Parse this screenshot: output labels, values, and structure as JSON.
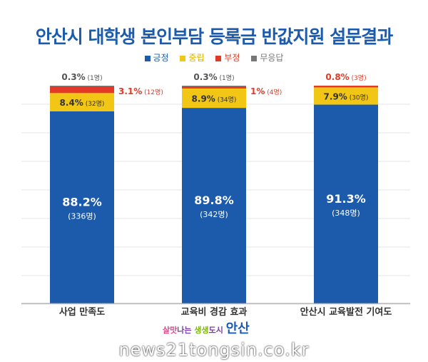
{
  "chart_data": {
    "type": "bar",
    "stacked": true,
    "title": "안산시 대학생 본인부담 등록금 반값지원 설문결과",
    "legend_position": "top",
    "categories": [
      "사업 만족도",
      "교육비 경감 효과",
      "안산시 교육발전 기여도"
    ],
    "series": [
      {
        "name": "긍정",
        "color": "#1c5bab",
        "values": [
          88.2,
          89.8,
          91.3
        ],
        "counts": [
          "(336명)",
          "(342명)",
          "(348명)"
        ]
      },
      {
        "name": "중립",
        "color": "#f2c614",
        "values": [
          8.4,
          8.9,
          7.9
        ],
        "counts": [
          "(32명)",
          "(34명)",
          "(30명)"
        ]
      },
      {
        "name": "부정",
        "color": "#e23a26",
        "values": [
          3.1,
          1.0,
          0.8
        ],
        "counts": [
          "(12명)",
          "(4명)",
          "(3명)"
        ]
      },
      {
        "name": "무응답",
        "color": "#777777",
        "values": [
          0.3,
          0.3,
          0.0
        ],
        "counts": [
          "(1명)",
          "(1명)",
          ""
        ]
      }
    ],
    "ylim": [
      0,
      100
    ],
    "grid": true
  },
  "footer": {
    "logo_text": "살맛나는 생생도시 안산",
    "watermark": "news21tongsin.co.kr"
  }
}
